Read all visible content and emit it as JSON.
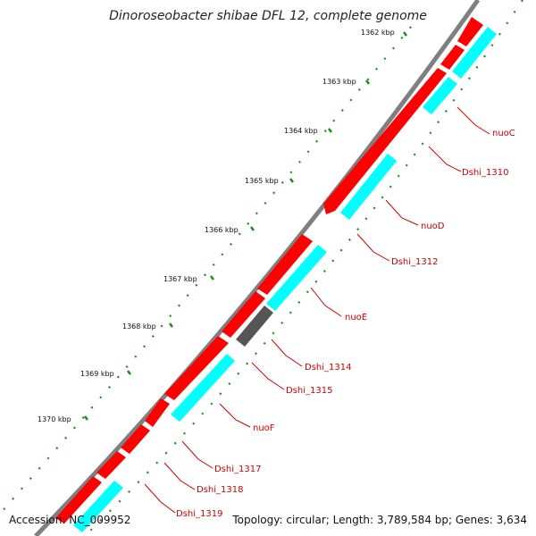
{
  "title": "Dinoroseobacter shibae DFL 12, complete genome",
  "footer": {
    "accession": "Accession: NC_009952",
    "summary": "Topology: circular; Length: 3,789,584 bp; Genes: 3,634"
  },
  "colors": {
    "backbone": "#7f7f7f",
    "gene_forward": "#ff0000",
    "gene_cds": "#00ffff",
    "gene_other": "#555555",
    "tick": "#1a8c1a",
    "label": "#cc0000"
  },
  "scale_labels": [
    "1362 kbp",
    "1363 kbp",
    "1364 kbp",
    "1365 kbp",
    "1366 kbp",
    "1367 kbp",
    "1368 kbp",
    "1369 kbp",
    "1370 kbp"
  ],
  "gene_labels": [
    "nuoC",
    "Dshi_1310",
    "nuoD",
    "Dshi_1312",
    "nuoE",
    "Dshi_1314",
    "Dshi_1315",
    "nuoF",
    "Dshi_1317",
    "Dshi_1318",
    "Dshi_1319"
  ]
}
